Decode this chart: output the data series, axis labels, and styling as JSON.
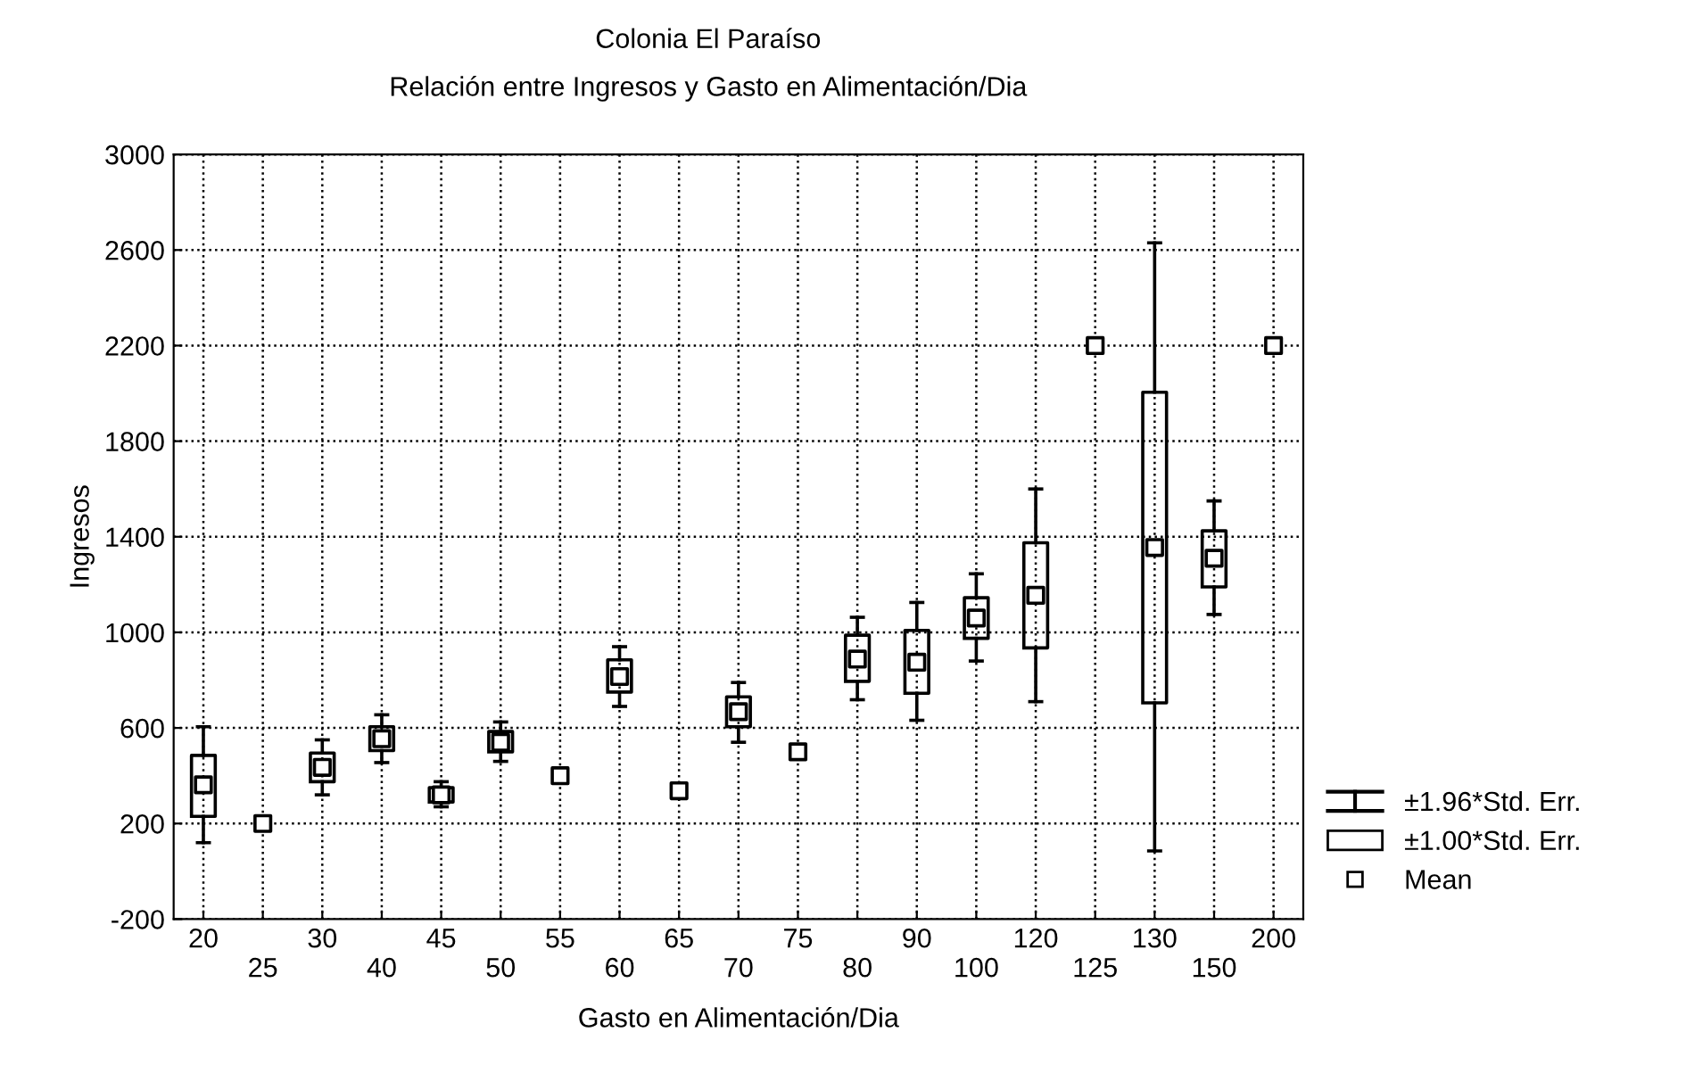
{
  "chart_data": {
    "type": "box",
    "title": "Colonia El Paraíso",
    "subtitle": "Relación entre Ingresos y Gasto en Alimentación/Dia",
    "xlabel": "Gasto en Alimentación/Dia",
    "ylabel": "Ingresos",
    "categories": [
      "20",
      "25",
      "30",
      "40",
      "45",
      "50",
      "55",
      "60",
      "65",
      "70",
      "75",
      "80",
      "90",
      "100",
      "120",
      "125",
      "130",
      "150",
      "200"
    ],
    "boxes": [
      {
        "low": 120,
        "q1": 230,
        "q3": 485,
        "high": 605
      },
      null,
      {
        "low": 320,
        "q1": 375,
        "q3": 495,
        "high": 550
      },
      {
        "low": 455,
        "q1": 505,
        "q3": 605,
        "high": 655
      },
      {
        "low": 270,
        "q1": 290,
        "q3": 350,
        "high": 375
      },
      {
        "low": 460,
        "q1": 500,
        "q3": 585,
        "high": 625
      },
      null,
      {
        "low": 690,
        "q1": 750,
        "q3": 885,
        "high": 940
      },
      null,
      {
        "low": 540,
        "q1": 605,
        "q3": 730,
        "high": 790
      },
      null,
      {
        "low": 718,
        "q1": 795,
        "q3": 988,
        "high": 1063
      },
      {
        "low": 632,
        "q1": 745,
        "q3": 1008,
        "high": 1125
      },
      {
        "low": 880,
        "q1": 975,
        "q3": 1145,
        "high": 1245
      },
      {
        "low": 710,
        "q1": 935,
        "q3": 1375,
        "high": 1600
      },
      null,
      {
        "low": 85,
        "q1": 705,
        "q3": 2005,
        "high": 2630
      },
      {
        "low": 1075,
        "q1": 1190,
        "q3": 1425,
        "high": 1550
      },
      null
    ],
    "series": [
      {
        "name": "Mean",
        "type": "scatter",
        "marker": "square",
        "color": "#000000",
        "values": [
          362,
          200,
          435,
          555,
          320,
          540,
          400,
          815,
          337,
          668,
          500,
          888,
          875,
          1060,
          1155,
          2200,
          1355,
          1310,
          2200
        ]
      }
    ],
    "annotations": [
      "±1.96*Std. Err.",
      "±1.00*Std. Err."
    ],
    "ylim": [
      -200,
      3000
    ],
    "yticks": [
      -200,
      200,
      600,
      1000,
      1400,
      1800,
      2200,
      2600,
      3000
    ],
    "grid": true,
    "legend": "bottom right"
  }
}
